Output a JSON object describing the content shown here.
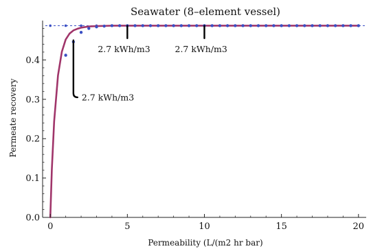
{
  "chart_data": {
    "type": "line",
    "title": "Seawater (8–element vessel)",
    "xlabel": "Permeability (L/(m2 hr bar)",
    "ylabel": "Permeate recovery",
    "xlim": [
      -0.5,
      20.5
    ],
    "ylim": [
      0,
      0.5
    ],
    "x_ticks": [
      0,
      5,
      10,
      15,
      20
    ],
    "x_tick_labels": [
      "0",
      "5",
      "10",
      "15",
      "20"
    ],
    "y_ticks": [
      0.0,
      0.1,
      0.2,
      0.3,
      0.4
    ],
    "y_tick_labels": [
      "0.0",
      "0.1",
      "0.2",
      "0.3",
      "0.4"
    ],
    "asymptote": 0.487,
    "grid": false,
    "series": [
      {
        "role": "curve",
        "color": "#a0356a",
        "x": [
          0,
          0.1,
          0.25,
          0.5,
          0.75,
          1,
          1.25,
          1.5,
          1.75,
          2,
          2.5,
          3,
          3.5,
          4,
          5,
          6,
          7,
          8,
          10,
          12,
          15,
          20
        ],
        "y": [
          0,
          0.122,
          0.244,
          0.361,
          0.421,
          0.452,
          0.467,
          0.475,
          0.479,
          0.482,
          0.485,
          0.486,
          0.4865,
          0.487,
          0.487,
          0.487,
          0.487,
          0.487,
          0.487,
          0.487,
          0.487,
          0.487
        ]
      },
      {
        "role": "points",
        "color": "#3a4fc4",
        "x": [
          1,
          1.5,
          2,
          2.5,
          3,
          3.5,
          4,
          4.5,
          5,
          5.5,
          6,
          6.5,
          7,
          7.5,
          8,
          8.5,
          9,
          9.5,
          10,
          10.5,
          11,
          11.5,
          12,
          12.5,
          13,
          13.5,
          14,
          14.5,
          15,
          15.5,
          16,
          16.5,
          17,
          17.5,
          18,
          18.5,
          19,
          19.5,
          20
        ],
        "y": [
          0.412,
          0.446,
          0.47,
          0.48,
          0.484,
          0.486,
          0.487,
          0.487,
          0.487,
          0.487,
          0.487,
          0.487,
          0.487,
          0.487,
          0.487,
          0.487,
          0.487,
          0.487,
          0.487,
          0.487,
          0.487,
          0.487,
          0.487,
          0.487,
          0.487,
          0.487,
          0.487,
          0.487,
          0.487,
          0.487,
          0.487,
          0.487,
          0.487,
          0.487,
          0.487,
          0.487,
          0.487,
          0.487,
          0.487
        ]
      }
    ],
    "asymptote_points_x": [
      0,
      1,
      2,
      3,
      4,
      5,
      6,
      7,
      8,
      9,
      10,
      11,
      12,
      13,
      14,
      15,
      16,
      17,
      18,
      19,
      20
    ],
    "annotations": [
      {
        "text": "2.7 kWh/m3",
        "x": 1.5,
        "y0": 0.45,
        "y1": 0.305,
        "align": "below-right"
      },
      {
        "text": "2.7 kWh/m3",
        "x": 5,
        "y0": 0.487,
        "y1": 0.455,
        "align": "below-left"
      },
      {
        "text": "2.7 kWh/m3",
        "x": 10,
        "y0": 0.487,
        "y1": 0.455,
        "align": "below-left"
      }
    ]
  }
}
